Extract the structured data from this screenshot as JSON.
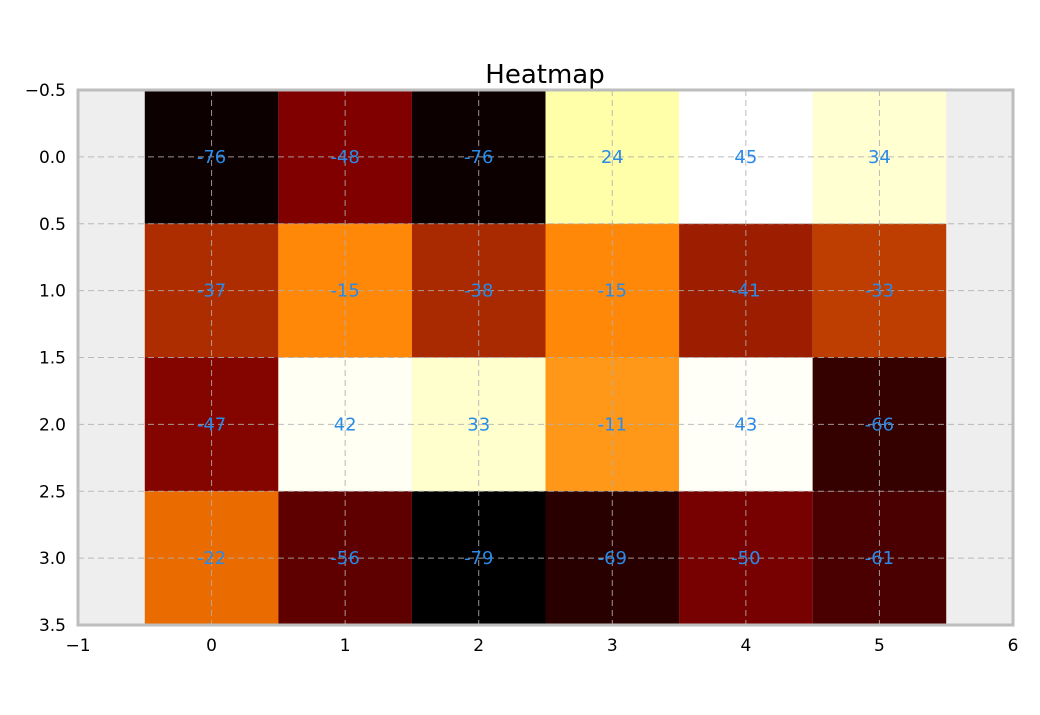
{
  "chart_data": {
    "type": "heatmap",
    "title": "Heatmap",
    "rows": 4,
    "cols": 6,
    "values": [
      [
        -76,
        -48,
        -76,
        24,
        45,
        34
      ],
      [
        -37,
        -15,
        -38,
        -15,
        -41,
        -33
      ],
      [
        -47,
        42,
        33,
        -11,
        43,
        -66
      ],
      [
        -22,
        -56,
        -79,
        -69,
        -50,
        -61
      ]
    ],
    "xlim": [
      -1,
      6
    ],
    "ylim": [
      3.5,
      -0.5
    ],
    "x_ticks": [
      "−1",
      "0",
      "1",
      "2",
      "3",
      "4",
      "5",
      "6"
    ],
    "y_ticks": [
      "−0.5",
      "0.0",
      "0.5",
      "1.0",
      "1.5",
      "2.0",
      "2.5",
      "3.0",
      "3.5"
    ],
    "x_tick_values": [
      -1,
      0,
      1,
      2,
      3,
      4,
      5,
      6
    ],
    "y_tick_values": [
      -0.5,
      0.0,
      0.5,
      1.0,
      1.5,
      2.0,
      2.5,
      3.0,
      3.5
    ],
    "colormap": "afmhot",
    "value_range": [
      -79,
      45
    ],
    "grid": true,
    "colors": {
      "label": "#2a8ae8",
      "plot_background": "#eeeeee",
      "frame": "#bdbdbd",
      "grid": "#b0b0b0"
    }
  }
}
